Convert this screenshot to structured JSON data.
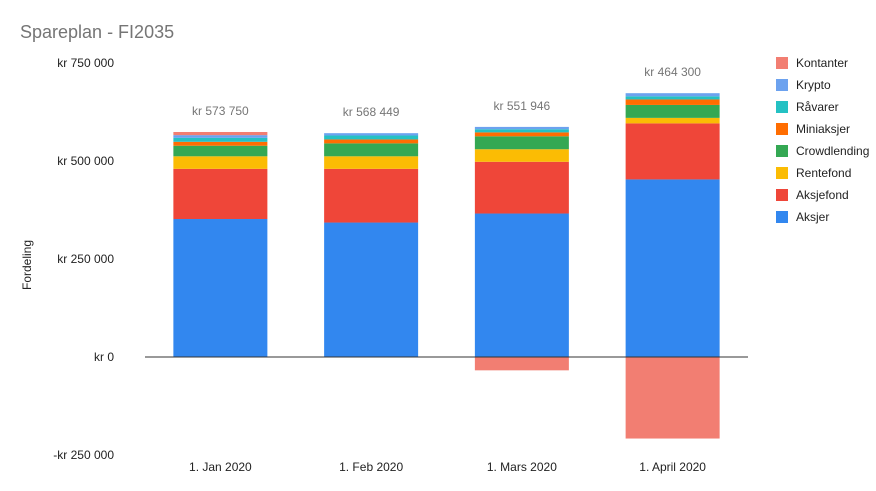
{
  "chart_data": {
    "type": "bar",
    "stacked": true,
    "title": "Spareplan - FI2035",
    "ylabel": "Fordeling",
    "xlabel": "",
    "ylim": [
      -250000,
      750000
    ],
    "yticks": [
      -250000,
      0,
      250000,
      500000,
      750000
    ],
    "ytick_labels": [
      "-kr  250 000",
      "kr  0",
      "kr  250 000",
      "kr  500 000",
      "kr  750 000"
    ],
    "categories": [
      "1. Jan 2020",
      "1. Feb 2020",
      "1. Mars 2020",
      "1. April 2020"
    ],
    "totals": [
      "kr  573 750",
      "kr  568 449",
      "kr  551 946",
      "kr  464 300"
    ],
    "legend_position": "right",
    "grid": false,
    "series": [
      {
        "name": "Aksjer",
        "color": "#3287ef",
        "values": [
          352000,
          343000,
          366000,
          453000
        ]
      },
      {
        "name": "Aksjefond",
        "color": "#ef4639",
        "values": [
          128000,
          137000,
          132000,
          143000
        ]
      },
      {
        "name": "Rentefond",
        "color": "#fbbc04",
        "values": [
          32000,
          32000,
          32000,
          14000
        ]
      },
      {
        "name": "Crowdlending",
        "color": "#34a853",
        "values": [
          27000,
          33000,
          33000,
          33000
        ]
      },
      {
        "name": "Miniaksjer",
        "color": "#ff6d01",
        "values": [
          10000,
          10000,
          10000,
          14000
        ]
      },
      {
        "name": "Råvarer",
        "color": "#24c1c3",
        "values": [
          10000,
          10000,
          8000,
          8000
        ]
      },
      {
        "name": "Krypto",
        "color": "#6ca2ef",
        "values": [
          7000,
          6000,
          6000,
          8000
        ]
      },
      {
        "name": "Kontanter",
        "color": "#f27e72",
        "values": [
          8000,
          0,
          -34000,
          -208000
        ]
      }
    ]
  }
}
